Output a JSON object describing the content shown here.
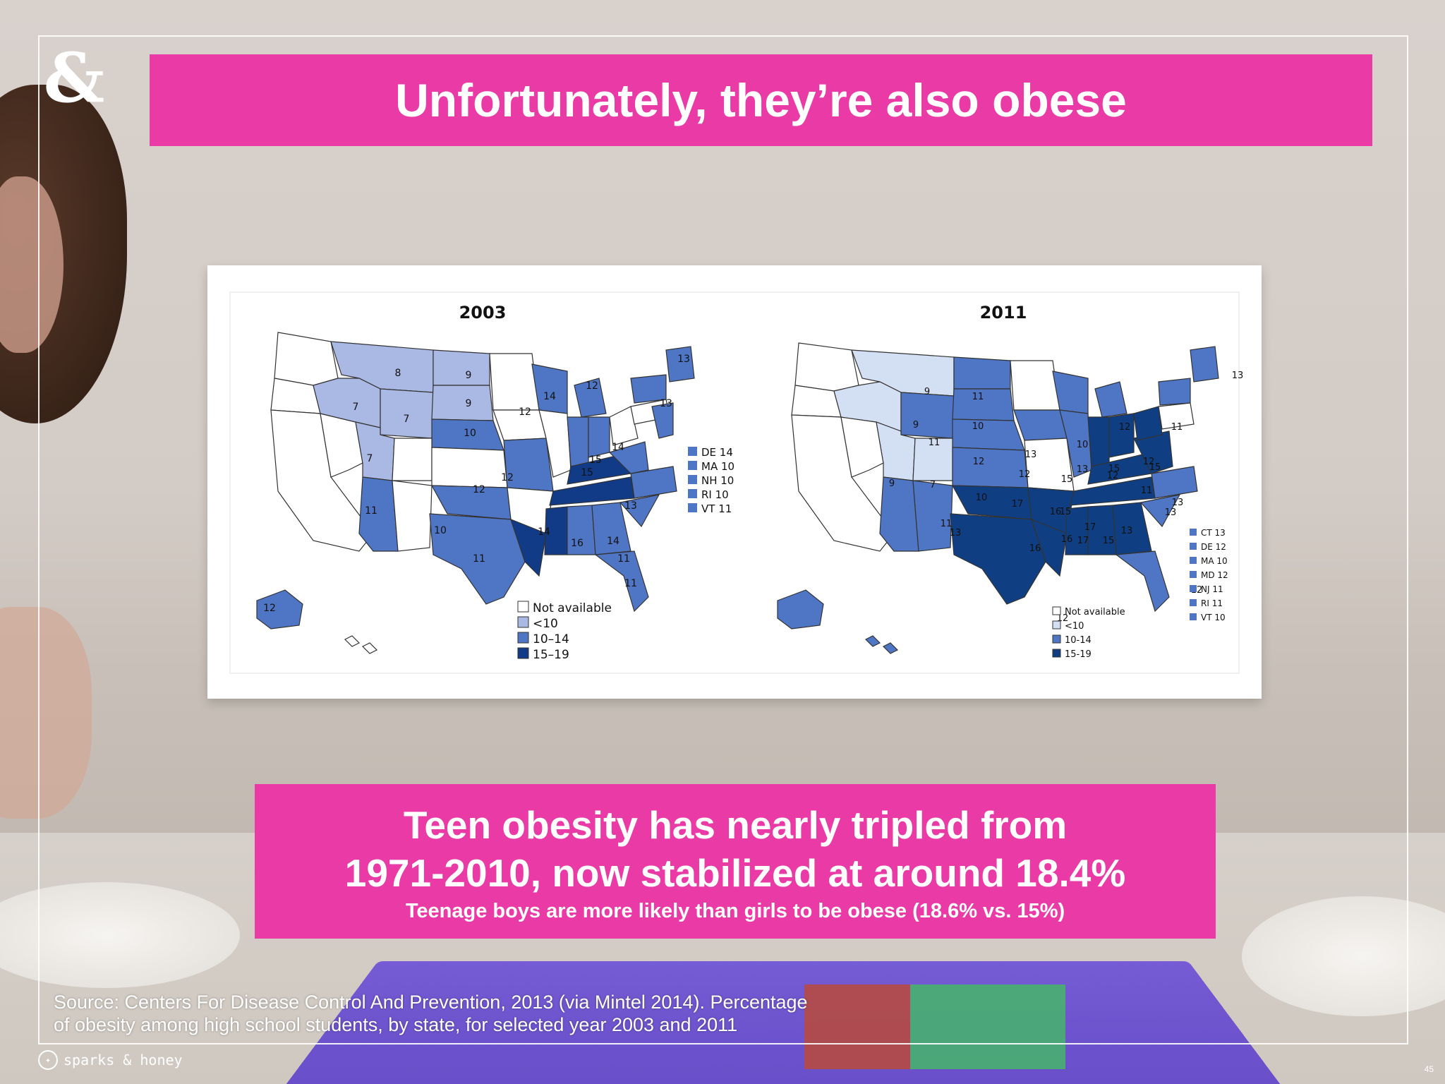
{
  "logo": {
    "glyph": "&"
  },
  "title": "Unfortunately, they’re also obese",
  "chart_data": [
    {
      "type": "map",
      "title": "2003",
      "legend": [
        "Not available",
        "<10",
        "10–14",
        "15–19"
      ],
      "colors": {
        "na": "#ffffff",
        "lt10": "#aab9e3",
        "mid": "#4f75c5",
        "high": "#113b86"
      },
      "state_labels": [
        "8",
        "9",
        "9",
        "7",
        "7",
        "7",
        "10",
        "10",
        "11",
        "12",
        "12",
        "12",
        "14",
        "12",
        "15",
        "14",
        "15",
        "13",
        "13",
        "13",
        "11",
        "14",
        "16",
        "14",
        "11",
        "12",
        "11"
      ],
      "side_table": [
        {
          "state": "DE",
          "value": "14"
        },
        {
          "state": "MA",
          "value": "10"
        },
        {
          "state": "NH",
          "value": "10"
        },
        {
          "state": "RI",
          "value": "10"
        },
        {
          "state": "VT",
          "value": "11"
        }
      ]
    },
    {
      "type": "map",
      "title": "2011",
      "legend": [
        "Not available",
        "<10",
        "10-14",
        "15-19"
      ],
      "colors": {
        "na": "#ffffff",
        "lt10": "#d3dff3",
        "mid": "#4f75c5",
        "high": "#0f3f82"
      },
      "state_labels": [
        "9",
        "9",
        "11",
        "10",
        "11",
        "12",
        "10",
        "9",
        "7",
        "13",
        "10",
        "12",
        "13",
        "12",
        "15",
        "15",
        "15",
        "11",
        "12",
        "12",
        "11",
        "17",
        "15",
        "17",
        "16",
        "13",
        "13",
        "16",
        "16",
        "17",
        "15",
        "13",
        "12",
        "12",
        "13",
        "11",
        "13"
      ],
      "side_table": [
        {
          "state": "CT",
          "value": "13"
        },
        {
          "state": "DE",
          "value": "12"
        },
        {
          "state": "MA",
          "value": "10"
        },
        {
          "state": "MD",
          "value": "12"
        },
        {
          "state": "NJ",
          "value": "11"
        },
        {
          "state": "RI",
          "value": "11"
        },
        {
          "state": "VT",
          "value": "10"
        }
      ]
    }
  ],
  "info": {
    "line1": "Teen obesity has nearly tripled from",
    "line2": "1971-2010, now stabilized at around 18.4%",
    "sub": "Teenage boys are more likely than girls to be obese (18.6% vs. 15%)"
  },
  "source": {
    "line1": "Source: Centers For Disease Control And Prevention, 2013 (via Mintel 2014). Percentage",
    "line2": "of obesity among high school students, by state, for selected year 2003 and 2011"
  },
  "footer": {
    "brand": "sparks & honey",
    "icon": "twitter-icon"
  },
  "page_number": "45"
}
